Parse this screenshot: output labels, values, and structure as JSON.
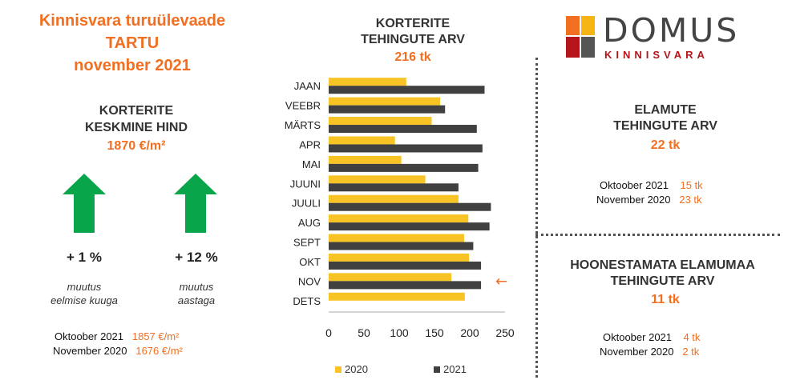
{
  "header": {
    "title_line1": "Kinnisvara turuülevaade",
    "title_line2": "TARTU",
    "title_line3": "november 2021"
  },
  "apartment_price": {
    "heading_line1": "KORTERITE",
    "heading_line2": "KESKMINE HIND",
    "value": "1870 €/m²",
    "monthly_change": "+ 1 %",
    "monthly_note_line1": "muutus",
    "monthly_note_line2": "eelmise kuuga",
    "yearly_change": "+ 12 %",
    "yearly_note_line1": "muutus",
    "yearly_note_line2": "aastaga",
    "arrow_color": "#08A54A",
    "comparisons": [
      {
        "label": "Oktoober  2021",
        "value": "1857 €/m²"
      },
      {
        "label": "November  2020",
        "value": "1676 €/m²"
      }
    ]
  },
  "apartment_transactions": {
    "heading_line1": "KORTERITE",
    "heading_line2": "TEHINGUTE ARV",
    "total": "216 tk"
  },
  "houses": {
    "heading_line1": "ELAMUTE",
    "heading_line2": "TEHINGUTE ARV",
    "value": "22 tk",
    "comparisons": [
      {
        "label": "Oktoober  2021",
        "value": "15 tk"
      },
      {
        "label": "November  2020",
        "value": "23 tk"
      }
    ]
  },
  "land": {
    "heading_line1": "HOONESTAMATA ELAMUMAA",
    "heading_line2": "TEHINGUTE ARV",
    "value": "11 tk",
    "comparisons": [
      {
        "label": "Oktoober  2021",
        "value": "4 tk"
      },
      {
        "label": "November  2020",
        "value": "2 tk"
      }
    ]
  },
  "logo": {
    "word": "DOMUS",
    "sub": "KINNISVARA",
    "colors": [
      "#F26F21",
      "#F7B515",
      "#B5141B",
      "#555555"
    ]
  },
  "chart_data": {
    "type": "bar",
    "orientation": "horizontal",
    "categories": [
      "JAAN",
      "VEEBR",
      "MÄRTS",
      "APR",
      "MAI",
      "JUUNI",
      "JUULI",
      "AUG",
      "SEPT",
      "OKT",
      "NOV",
      "DETS"
    ],
    "series": [
      {
        "name": "2020",
        "color": "#F7C325",
        "values": [
          110,
          158,
          146,
          94,
          103,
          137,
          184,
          198,
          192,
          199,
          174,
          193
        ]
      },
      {
        "name": "2021",
        "color": "#404040",
        "values": [
          221,
          165,
          210,
          218,
          212,
          184,
          230,
          228,
          205,
          216,
          216,
          null
        ]
      }
    ],
    "xlim": [
      0,
      250
    ],
    "xticks": [
      0,
      50,
      100,
      150,
      200,
      250
    ],
    "highlight_marker": "←",
    "highlight_category": "NOV",
    "highlight_color": "#F26F21",
    "legend_position": "bottom",
    "grid": false
  }
}
